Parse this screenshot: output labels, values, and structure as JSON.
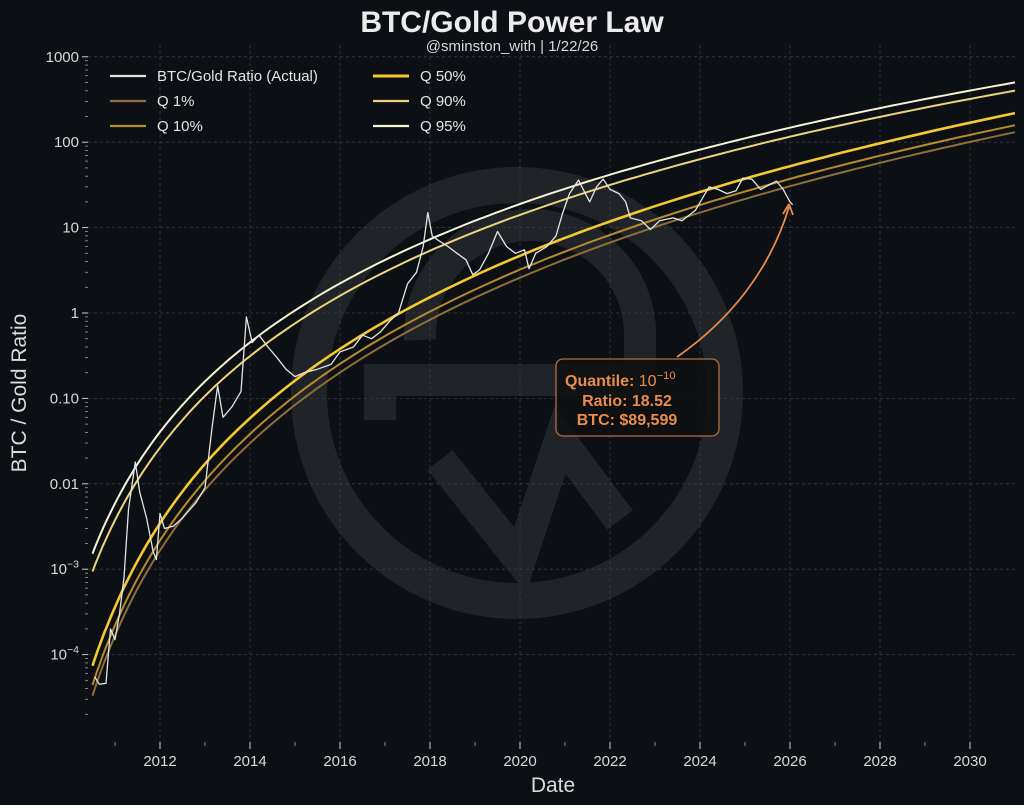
{
  "chart_data": {
    "type": "line",
    "title": "BTC/Gold Power Law",
    "subtitle": "@sminston_with | 1/22/26",
    "xlabel": "Date",
    "ylabel": "BTC / Gold Ratio",
    "yscale": "log",
    "xlim": [
      2010.44,
      2031.0
    ],
    "ylim": [
      1e-05,
      2000
    ],
    "grid": true,
    "legend_placement": "top-left",
    "x_ticks": [
      "2012",
      "2014",
      "2016",
      "2018",
      "2020",
      "2022",
      "2024",
      "2026",
      "2028",
      "2030"
    ],
    "y_ticks": [
      {
        "value": 1000,
        "label": "1000"
      },
      {
        "value": 100,
        "label": "100"
      },
      {
        "value": 10,
        "label": "10"
      },
      {
        "value": 1,
        "label": "1"
      },
      {
        "value": 0.1,
        "label": "0.10"
      },
      {
        "value": 0.01,
        "label": "0.01"
      },
      {
        "value": 0.001,
        "label": "10^-3"
      },
      {
        "value": 0.0001,
        "label": "10^-4"
      }
    ],
    "series": [
      {
        "name": "BTC/Gold Ratio (Actual)",
        "color": "#e4e4e4",
        "points": [
          [
            2010.55,
            5.5e-05
          ],
          [
            2010.65,
            4.5e-05
          ],
          [
            2010.8,
            4.6e-05
          ],
          [
            2010.9,
            0.0002
          ],
          [
            2011.0,
            0.00015
          ],
          [
            2011.1,
            0.0003
          ],
          [
            2011.2,
            0.0008
          ],
          [
            2011.3,
            0.005
          ],
          [
            2011.45,
            0.018
          ],
          [
            2011.55,
            0.008
          ],
          [
            2011.7,
            0.004
          ],
          [
            2011.85,
            0.0016
          ],
          [
            2011.92,
            0.0013
          ],
          [
            2012.0,
            0.0045
          ],
          [
            2012.1,
            0.003
          ],
          [
            2012.3,
            0.0032
          ],
          [
            2012.5,
            0.004
          ],
          [
            2012.8,
            0.006
          ],
          [
            2013.0,
            0.009
          ],
          [
            2013.15,
            0.043
          ],
          [
            2013.28,
            0.14
          ],
          [
            2013.4,
            0.06
          ],
          [
            2013.6,
            0.08
          ],
          [
            2013.8,
            0.12
          ],
          [
            2013.92,
            0.9
          ],
          [
            2014.05,
            0.45
          ],
          [
            2014.2,
            0.55
          ],
          [
            2014.4,
            0.4
          ],
          [
            2014.6,
            0.3
          ],
          [
            2014.8,
            0.22
          ],
          [
            2015.0,
            0.18
          ],
          [
            2015.2,
            0.2
          ],
          [
            2015.5,
            0.22
          ],
          [
            2015.8,
            0.25
          ],
          [
            2016.0,
            0.35
          ],
          [
            2016.3,
            0.4
          ],
          [
            2016.5,
            0.55
          ],
          [
            2016.7,
            0.5
          ],
          [
            2016.9,
            0.6
          ],
          [
            2017.1,
            0.8
          ],
          [
            2017.3,
            1.0
          ],
          [
            2017.5,
            2.2
          ],
          [
            2017.7,
            3.0
          ],
          [
            2017.85,
            6
          ],
          [
            2017.95,
            15
          ],
          [
            2018.05,
            8
          ],
          [
            2018.2,
            7
          ],
          [
            2018.4,
            6
          ],
          [
            2018.6,
            5
          ],
          [
            2018.8,
            4.2
          ],
          [
            2018.95,
            2.8
          ],
          [
            2019.1,
            3.2
          ],
          [
            2019.3,
            5
          ],
          [
            2019.5,
            9
          ],
          [
            2019.7,
            6
          ],
          [
            2019.9,
            5
          ],
          [
            2020.1,
            5.5
          ],
          [
            2020.2,
            3.3
          ],
          [
            2020.35,
            5
          ],
          [
            2020.6,
            6
          ],
          [
            2020.8,
            8
          ],
          [
            2020.95,
            15
          ],
          [
            2021.1,
            25
          ],
          [
            2021.3,
            36
          ],
          [
            2021.45,
            25
          ],
          [
            2021.55,
            20
          ],
          [
            2021.7,
            30
          ],
          [
            2021.85,
            37
          ],
          [
            2022.0,
            28
          ],
          [
            2022.2,
            25
          ],
          [
            2022.35,
            20
          ],
          [
            2022.45,
            13
          ],
          [
            2022.7,
            12
          ],
          [
            2022.9,
            9.5
          ],
          [
            2023.1,
            12
          ],
          [
            2023.4,
            13
          ],
          [
            2023.6,
            12
          ],
          [
            2023.9,
            16
          ],
          [
            2024.2,
            30
          ],
          [
            2024.4,
            28
          ],
          [
            2024.6,
            25
          ],
          [
            2024.8,
            27
          ],
          [
            2024.95,
            38
          ],
          [
            2025.15,
            37
          ],
          [
            2025.35,
            28
          ],
          [
            2025.55,
            32
          ],
          [
            2025.7,
            35
          ],
          [
            2025.85,
            28
          ],
          [
            2026.0,
            20
          ],
          [
            2026.06,
            18.52
          ]
        ]
      },
      {
        "name": "Q 1%",
        "color": "#8c6f3a",
        "points": [
          [
            2010.5,
            3.3e-05
          ],
          [
            2011,
            0.000167
          ],
          [
            2012,
            0.00166
          ],
          [
            2013,
            0.0085
          ],
          [
            2014,
            0.0299
          ],
          [
            2016,
            0.201
          ],
          [
            2018,
            0.834
          ],
          [
            2020,
            2.59
          ],
          [
            2022,
            6.68
          ],
          [
            2024,
            15.0
          ],
          [
            2026,
            30.5
          ],
          [
            2028,
            57.3
          ],
          [
            2031,
            131
          ]
        ]
      },
      {
        "name": "Q 10%",
        "color": "#b58c2e",
        "points": [
          [
            2010.5,
            4.4e-05
          ],
          [
            2011,
            0.00022
          ],
          [
            2012,
            0.00217
          ],
          [
            2013,
            0.0109
          ],
          [
            2014,
            0.0383
          ],
          [
            2016,
            0.254
          ],
          [
            2018,
            1.04
          ],
          [
            2020,
            3.22
          ],
          [
            2022,
            8.2
          ],
          [
            2024,
            18.4
          ],
          [
            2026,
            37.2
          ],
          [
            2028,
            69.5
          ],
          [
            2031,
            158
          ]
        ]
      },
      {
        "name": "Q 50%",
        "color": "#f3c832",
        "points": [
          [
            2010.5,
            7.4e-05
          ],
          [
            2011,
            0.00036
          ],
          [
            2012,
            0.00345
          ],
          [
            2013,
            0.0171
          ],
          [
            2014,
            0.0587
          ],
          [
            2016,
            0.38
          ],
          [
            2018,
            1.53
          ],
          [
            2020,
            4.68
          ],
          [
            2022,
            11.8
          ],
          [
            2024,
            26.1
          ],
          [
            2026,
            52.4
          ],
          [
            2028,
            97
          ],
          [
            2031,
            219
          ]
        ]
      },
      {
        "name": "Q 90%",
        "color": "#ead57e",
        "points": [
          [
            2010.5,
            0.00094
          ],
          [
            2011,
            0.00375
          ],
          [
            2012,
            0.0265
          ],
          [
            2013,
            0.107
          ],
          [
            2014,
            0.313
          ],
          [
            2016,
            1.59
          ],
          [
            2018,
            5.36
          ],
          [
            2020,
            14.1
          ],
          [
            2022,
            31.6
          ],
          [
            2024,
            63.2
          ],
          [
            2026,
            116
          ],
          [
            2028,
            198
          ],
          [
            2031,
            402
          ]
        ]
      },
      {
        "name": "Q 95%",
        "color": "#f6f2d6",
        "points": [
          [
            2010.5,
            0.00152
          ],
          [
            2011,
            0.0059
          ],
          [
            2012,
            0.0405
          ],
          [
            2013,
            0.158
          ],
          [
            2014,
            0.453
          ],
          [
            2016,
            2.22
          ],
          [
            2018,
            7.3
          ],
          [
            2020,
            18.9
          ],
          [
            2022,
            41.6
          ],
          [
            2024,
            81.8
          ],
          [
            2026,
            148
          ],
          [
            2028,
            251
          ],
          [
            2031,
            501
          ]
        ]
      }
    ],
    "legend_order": [
      0,
      1,
      2,
      3,
      4,
      5
    ],
    "annotation": {
      "quantile_label": "Quantile:",
      "quantile_value": "10^-10",
      "ratio_text": "Ratio: 18.52",
      "btc_text": "BTC: $89,599",
      "target": [
        2026.06,
        18.52
      ],
      "color": "#e98c4c"
    }
  },
  "colors": {
    "background": "#0c0f13",
    "grid": "#3a3d42",
    "watermark": "#24272b"
  }
}
